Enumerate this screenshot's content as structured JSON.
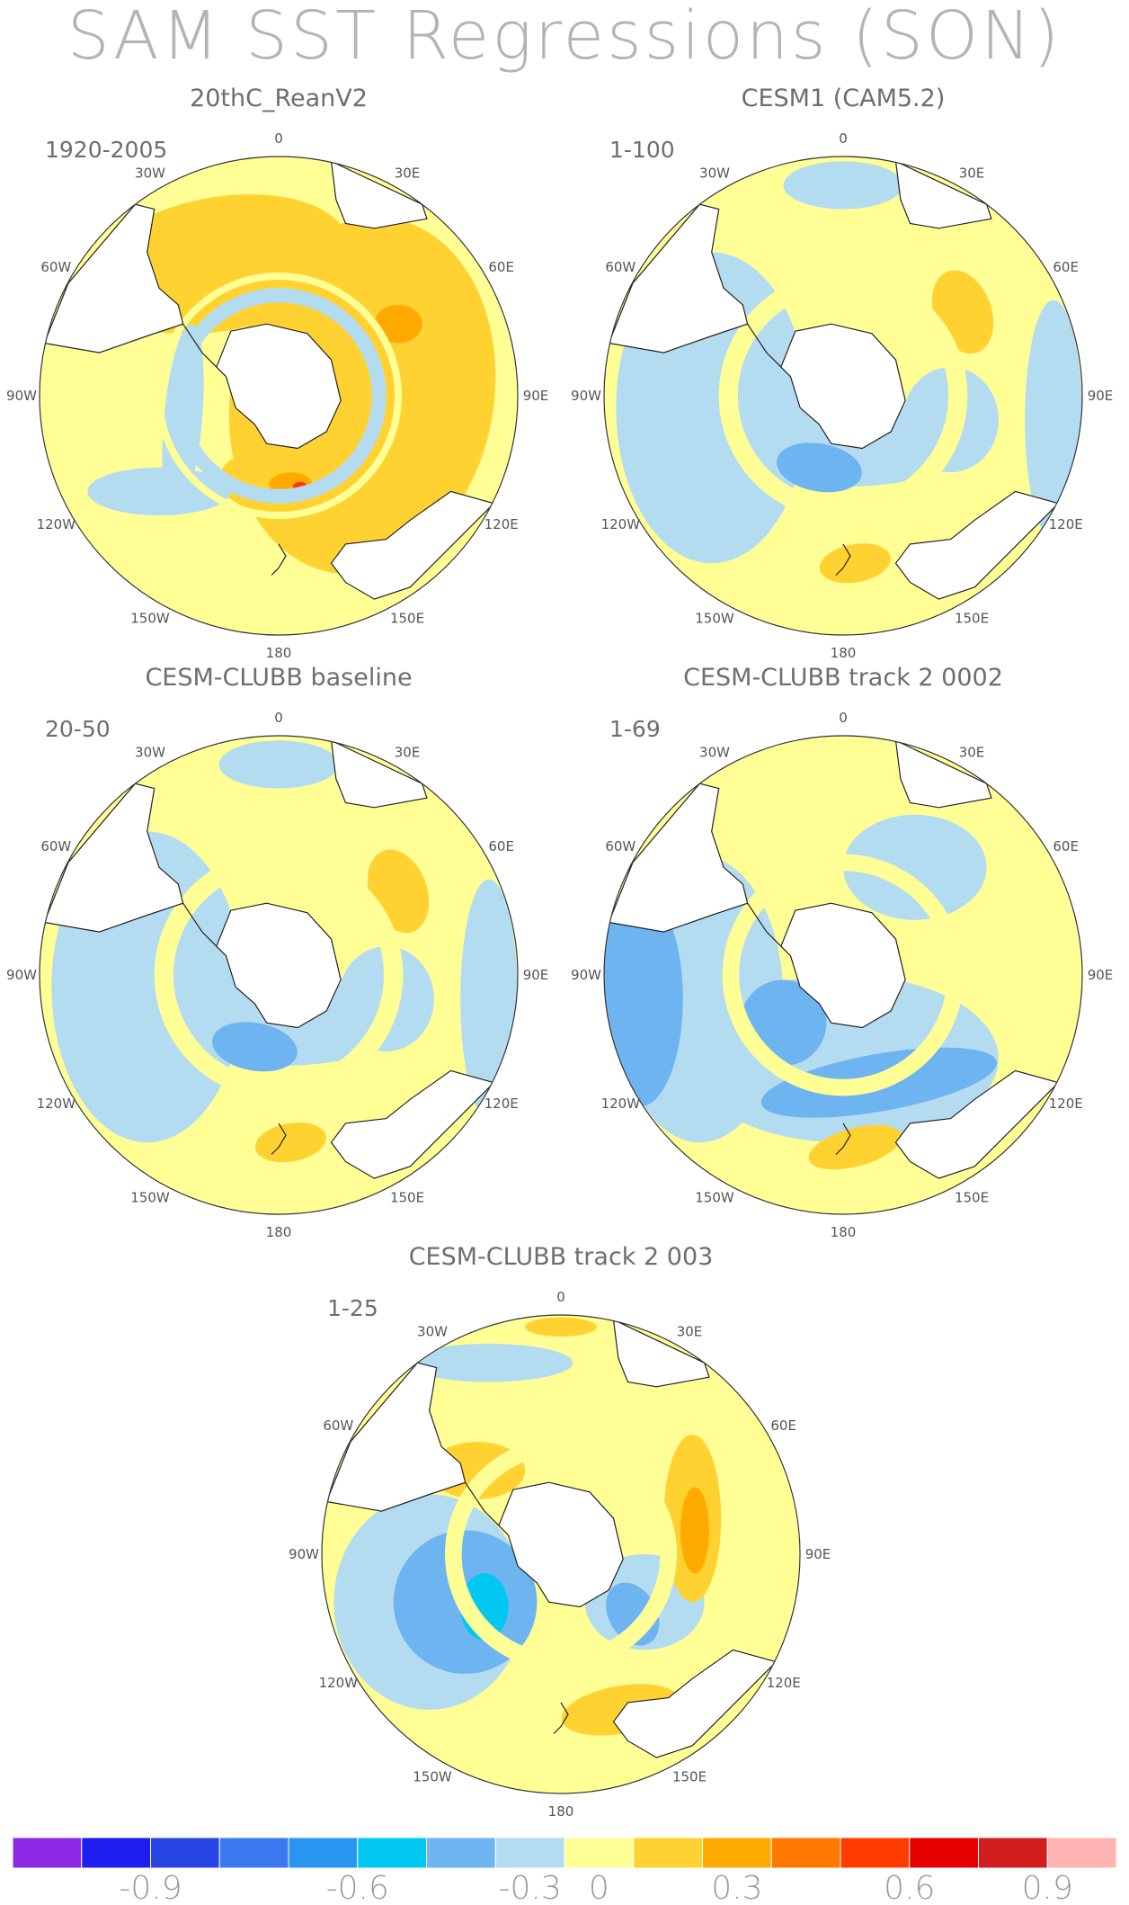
{
  "title": "SAM SST Regressions (SON)",
  "panels": [
    {
      "title": "20thC_ReanV2",
      "period": "1920-2005",
      "scheme": "warm"
    },
    {
      "title": "CESM1 (CAM5.2)",
      "period": "1-100",
      "scheme": "mixed"
    },
    {
      "title": "CESM-CLUBB baseline",
      "period": "20-50",
      "scheme": "mixed"
    },
    {
      "title": "CESM-CLUBB track 2 0002",
      "period": "1-69",
      "scheme": "cool"
    },
    {
      "title": "CESM-CLUBB track 2 003",
      "period": "1-25",
      "scheme": "strong"
    }
  ],
  "longitude_labels": [
    "0",
    "30E",
    "60E",
    "90E",
    "120E",
    "150E",
    "180",
    "150W",
    "120W",
    "90W",
    "60W",
    "30W"
  ],
  "colorbar": {
    "colors": [
      "#8c28e6",
      "#1e1ef0",
      "#2846e6",
      "#3c78f0",
      "#2896f0",
      "#00c8f0",
      "#6eb4f0",
      "#b4dcf0",
      "#ffff96",
      "#ffd232",
      "#ffaa00",
      "#ff7800",
      "#ff3c00",
      "#e60000",
      "#d21e1e",
      "#ffb4b4"
    ],
    "labels": [
      "-0.9",
      "-0.6",
      "-0.3",
      "0",
      "0.3",
      "0.6",
      "0.9"
    ]
  }
}
